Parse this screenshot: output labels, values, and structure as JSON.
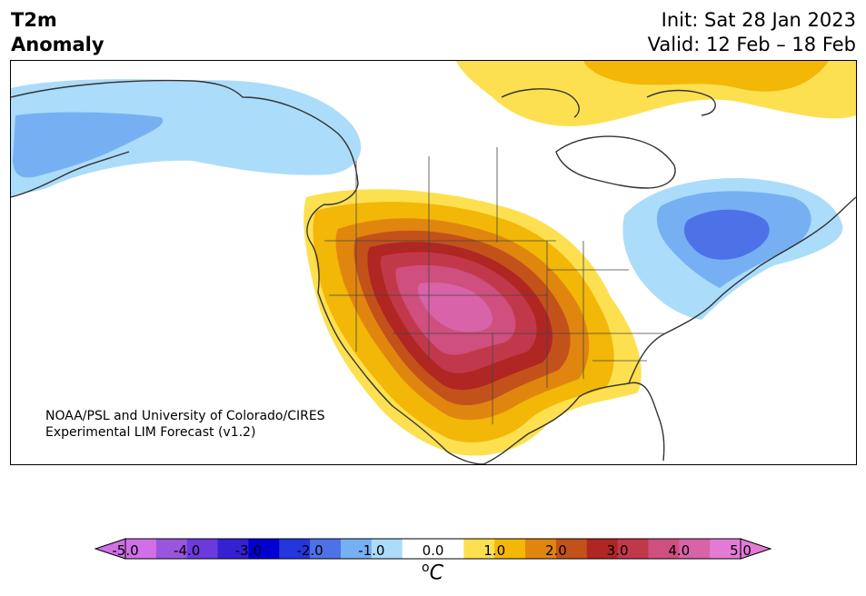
{
  "header": {
    "left_line1": "T2m",
    "left_line2": "Anomaly",
    "init": "Init: Sat 28 Jan 2023",
    "valid": "Valid: 12 Feb – 18 Feb"
  },
  "credit": {
    "line1": "NOAA/PSL and University of Colorado/CIRES",
    "line2": "Experimental LIM Forecast (v1.2)"
  },
  "colorbar": {
    "unit_base": "C",
    "unit_sup": "o",
    "ticks": [
      "-5.0",
      "-4.0",
      "-3.0",
      "-2.0",
      "-1.0",
      "0.0",
      "1.0",
      "2.0",
      "3.0",
      "4.0",
      "5.0"
    ],
    "colors": [
      "#d070e8",
      "#9a55de",
      "#6c3adc",
      "#3520d2",
      "#0000d0",
      "#2537dc",
      "#4d72e8",
      "#77b0f2",
      "#abdcfa",
      "#ffffff",
      "#ffffff",
      "#fde050",
      "#f2b707",
      "#e0860f",
      "#c3521a",
      "#b02623",
      "#c2384b",
      "#cf4f7e",
      "#d863a8",
      "#e47ad6"
    ],
    "under_color": "#d070e8",
    "over_color": "#e47ad6"
  },
  "map": {
    "land_color": "#ffffff",
    "ocean_color": "#ffffff",
    "coast_color": "#333333"
  }
}
